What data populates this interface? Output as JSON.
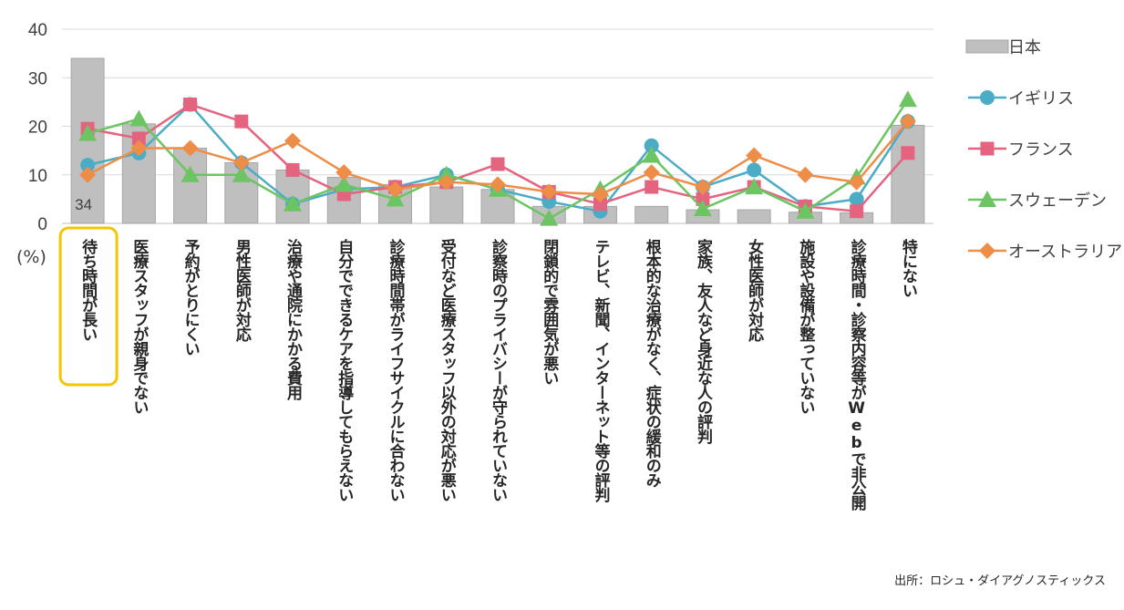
{
  "chart_data": {
    "type": "bar",
    "unit_label": "(%)",
    "source": "出所：ロシュ・ダイアグノスティックス",
    "ylim": [
      0,
      40
    ],
    "yticks": [
      "0",
      "10",
      "20",
      "30",
      "40"
    ],
    "grid": true,
    "legend_position": "right",
    "highlight_category_index": 0,
    "categories": [
      "待ち時間が長い",
      "医療スタッフが親身でない",
      "予約がとりにくい",
      "男性医師が対応",
      "治療や通院にかかる費用",
      "自分でできるケアを指導してもらえない",
      "診療時間帯がライフサイクルに合わない",
      "受付など医療スタッフ以外の対応が悪い",
      "診察時のプライバシーが守られていない",
      "閉鎖的で雰囲気が悪い",
      "テレビ、新聞、インターネット等の評判",
      "根本的な治療がなく、症状の緩和のみ",
      "家族、友人など身近な人の評判",
      "女性医師が対応",
      "施設や設備が整っていない",
      "診療時間・診察内容等がWebで非公開",
      "特にない"
    ],
    "data_labels": [
      {
        "category_index": 0,
        "series": "日本",
        "text": "34"
      }
    ],
    "series": [
      {
        "name": "日本",
        "kind": "bar",
        "color": "#bfbfbf",
        "marker": "rect",
        "values": [
          34,
          20.5,
          15.5,
          12.5,
          11,
          9.5,
          8,
          7.5,
          7,
          3.5,
          3.5,
          3.5,
          2.8,
          2.8,
          2.3,
          2.2,
          20.2
        ]
      },
      {
        "name": "イギリス",
        "kind": "line",
        "color": "#4bacc6",
        "marker": "circle",
        "values": [
          12,
          14.5,
          24.5,
          12.5,
          4,
          7,
          7.5,
          10,
          7,
          4.5,
          2.5,
          16,
          7.5,
          11,
          3.5,
          5,
          21
        ]
      },
      {
        "name": "フランス",
        "kind": "line",
        "color": "#e4637f",
        "marker": "square",
        "values": [
          19.5,
          17.5,
          24.5,
          21,
          11,
          6,
          7.5,
          8.5,
          12.2,
          6.5,
          4,
          7.5,
          5,
          7.5,
          3.5,
          2.5,
          14.5
        ]
      },
      {
        "name": "スウェーデン",
        "kind": "line",
        "color": "#6cc462",
        "marker": "triangle",
        "values": [
          18.5,
          21.5,
          10,
          10,
          4,
          8,
          5,
          10,
          7,
          1,
          7,
          14,
          3,
          7.5,
          2.5,
          9.5,
          25.5
        ]
      },
      {
        "name": "オーストラリア",
        "kind": "line",
        "color": "#ee8d48",
        "marker": "diamond",
        "values": [
          10,
          15.5,
          15.5,
          12.5,
          17,
          10.5,
          7,
          8.5,
          8,
          6.5,
          6,
          10.5,
          7.5,
          14,
          10,
          8.5,
          21
        ]
      }
    ]
  }
}
